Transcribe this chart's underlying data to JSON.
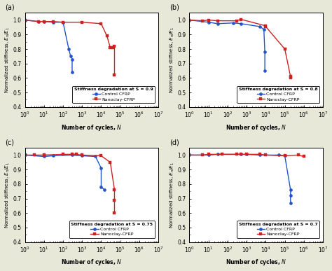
{
  "panels": [
    {
      "label": "a",
      "title": "Stiffness degradation at S = 0.9",
      "control": {
        "x": [
          1,
          5,
          10,
          30,
          100,
          200,
          250,
          300,
          300
        ],
        "y": [
          1.0,
          0.99,
          0.99,
          0.985,
          0.985,
          0.8,
          0.75,
          0.73,
          0.64
        ]
      },
      "nanoclay": {
        "x": [
          1,
          5,
          10,
          30,
          100,
          1000,
          10000,
          20000,
          30000,
          40000,
          50000,
          50000
        ],
        "y": [
          1.0,
          0.99,
          0.99,
          0.99,
          0.985,
          0.985,
          0.975,
          0.89,
          0.81,
          0.81,
          0.82,
          0.62
        ]
      }
    },
    {
      "label": "b",
      "title": "Stiffness degradation at S = 0.8",
      "control": {
        "x": [
          1,
          10,
          30,
          200,
          500,
          5000,
          8000,
          9000,
          9000
        ],
        "y": [
          1.0,
          0.985,
          0.975,
          0.98,
          0.975,
          0.955,
          0.935,
          0.78,
          0.65
        ]
      },
      "nanoclay": {
        "x": [
          1,
          5,
          10,
          30,
          300,
          500,
          10000,
          10000,
          100000,
          200000,
          200000
        ],
        "y": [
          1.0,
          0.995,
          1.0,
          0.995,
          0.995,
          1.005,
          0.96,
          0.955,
          0.8,
          0.61,
          0.6
        ]
      }
    },
    {
      "label": "c",
      "title": "Stiffness degradation at S = 0.75",
      "control": {
        "x": [
          1,
          10,
          30,
          300,
          1000,
          5000,
          10000,
          10000,
          15000
        ],
        "y": [
          1.0,
          0.99,
          0.995,
          1.0,
          0.995,
          0.99,
          0.91,
          0.78,
          0.76
        ]
      },
      "nanoclay": {
        "x": [
          1,
          3,
          10,
          100,
          300,
          500,
          1000,
          10000,
          30000,
          50000,
          50000,
          50000
        ],
        "y": [
          1.0,
          1.0,
          1.0,
          1.005,
          1.005,
          1.005,
          1.0,
          0.995,
          0.95,
          0.76,
          0.69,
          0.6
        ]
      }
    },
    {
      "label": "d",
      "title": "Stiffness degradation at S = 0.7",
      "control": {
        "x": [
          1,
          10,
          30,
          500,
          1000,
          5000,
          50000,
          100000,
          200000,
          200000,
          200000
        ],
        "y": [
          1.0,
          1.0,
          1.005,
          1.005,
          1.005,
          1.0,
          1.0,
          0.995,
          0.76,
          0.72,
          0.67
        ]
      },
      "nanoclay": {
        "x": [
          1,
          5,
          10,
          50,
          300,
          500,
          1000,
          5000,
          10000,
          100000,
          500000,
          1000000
        ],
        "y": [
          1.0,
          1.0,
          1.005,
          1.005,
          1.005,
          1.005,
          1.005,
          1.005,
          1.0,
          0.995,
          1.0,
          0.99
        ]
      }
    }
  ],
  "control_color": "#2255cc",
  "nanoclay_color": "#cc2222",
  "xlabel": "Number of cycles, $N$",
  "ylabel": "Normalized stiffness, $E_n/E_1$",
  "ylim": [
    0.4,
    1.05
  ],
  "xlim_log": [
    0,
    7
  ],
  "bg_color": "#e8e8d8",
  "plot_bg": "#ffffff"
}
